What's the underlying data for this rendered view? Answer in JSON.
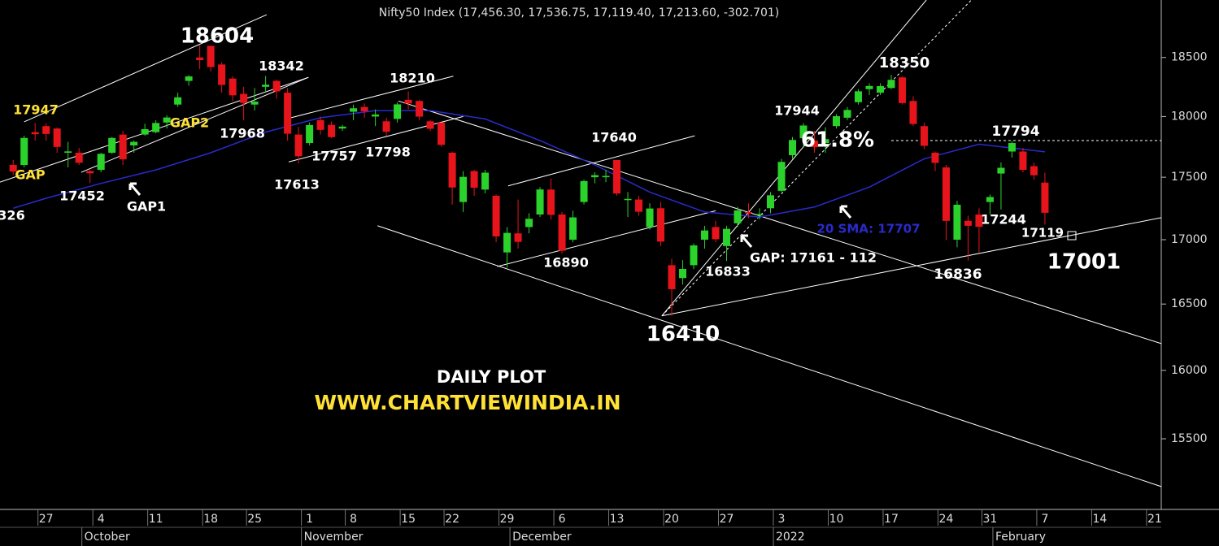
{
  "chart_data": {
    "type": "candlestick",
    "title": "Nifty50 Index (17,456.30, 17,536.75, 17,119.40, 17,213.60, -302.701)",
    "log_scale": true,
    "ylim": [
      15000,
      19000
    ],
    "yticks": [
      15500,
      16000,
      16500,
      17000,
      17500,
      18000,
      18500
    ],
    "xlim": [
      -4.2,
      101.6
    ],
    "xticks": [
      {
        "value": 0,
        "label": "27"
      },
      {
        "value": 5,
        "label": "4"
      },
      {
        "value": 10,
        "label": "11"
      },
      {
        "value": 15,
        "label": "18"
      },
      {
        "value": 19,
        "label": "25"
      },
      {
        "value": 24,
        "label": "1"
      },
      {
        "value": 28,
        "label": "8"
      },
      {
        "value": 33,
        "label": "15"
      },
      {
        "value": 37,
        "label": "22"
      },
      {
        "value": 42,
        "label": "29"
      },
      {
        "value": 47,
        "label": "6"
      },
      {
        "value": 52,
        "label": "13"
      },
      {
        "value": 57,
        "label": "20"
      },
      {
        "value": 62,
        "label": "27"
      },
      {
        "value": 67,
        "label": "3"
      },
      {
        "value": 72,
        "label": "10"
      },
      {
        "value": 77,
        "label": "17"
      },
      {
        "value": 82,
        "label": "24"
      },
      {
        "value": 86,
        "label": "31"
      },
      {
        "value": 91,
        "label": "7"
      },
      {
        "value": 96,
        "label": "14"
      },
      {
        "value": 101,
        "label": "21"
      }
    ],
    "month_ticks": [
      {
        "value": 4,
        "label": "October"
      },
      {
        "value": 24,
        "label": "November"
      },
      {
        "value": 43,
        "label": "December"
      },
      {
        "value": 67,
        "label": "2022"
      },
      {
        "value": 87,
        "label": "February"
      }
    ],
    "series": [
      {
        "up_color": "#2bd22b",
        "down_color": "#e8141b",
        "x": [
          -3,
          -2,
          -1,
          0,
          1,
          2,
          3,
          4,
          5,
          6,
          7,
          8,
          9,
          10,
          11,
          12,
          13,
          14,
          15,
          16,
          17,
          18,
          19,
          20,
          21,
          22,
          23,
          24,
          25,
          26,
          27,
          28,
          29,
          30,
          31,
          32,
          33,
          34,
          35,
          36,
          37,
          38,
          39,
          40,
          41,
          42,
          43,
          44,
          45,
          46,
          47,
          48,
          49,
          50,
          51,
          52,
          53,
          54,
          55,
          56,
          57,
          58,
          59,
          60,
          61,
          62,
          63,
          64,
          65,
          66,
          67,
          68,
          69,
          70,
          71,
          72,
          73,
          74,
          75,
          76,
          77,
          78,
          79,
          80,
          81,
          82,
          83,
          84,
          85,
          86,
          87,
          88,
          89,
          90,
          91
        ],
        "ohlc": [
          [
            17600,
            17640,
            17520,
            17546
          ],
          [
            17600,
            17840,
            17580,
            17822
          ],
          [
            17870,
            17947,
            17800,
            17853
          ],
          [
            17920,
            17943,
            17800,
            17855
          ],
          [
            17900,
            17910,
            17700,
            17748
          ],
          [
            17700,
            17790,
            17580,
            17711
          ],
          [
            17700,
            17740,
            17600,
            17618
          ],
          [
            17550,
            17560,
            17452,
            17532
          ],
          [
            17560,
            17700,
            17540,
            17691
          ],
          [
            17700,
            17830,
            17690,
            17822
          ],
          [
            17850,
            17880,
            17600,
            17646
          ],
          [
            17760,
            17800,
            17700,
            17790
          ],
          [
            17850,
            17940,
            17840,
            17895
          ],
          [
            17870,
            17970,
            17860,
            17946
          ],
          [
            17950,
            18010,
            17900,
            17992
          ],
          [
            18100,
            18200,
            18080,
            18161
          ],
          [
            18300,
            18350,
            18260,
            18338
          ],
          [
            18500,
            18604,
            18400,
            18477
          ],
          [
            18600,
            18600,
            18380,
            18418
          ],
          [
            18440,
            18460,
            18200,
            18266
          ],
          [
            18320,
            18340,
            18130,
            18178
          ],
          [
            18190,
            18250,
            17968,
            18114
          ],
          [
            18100,
            18240,
            18050,
            18125
          ],
          [
            18250,
            18342,
            18200,
            18268
          ],
          [
            18300,
            18310,
            18150,
            18211
          ],
          [
            18200,
            18240,
            17800,
            17857
          ],
          [
            17850,
            17915,
            17613,
            17671
          ],
          [
            17780,
            17950,
            17760,
            17929
          ],
          [
            17970,
            18000,
            17850,
            17889
          ],
          [
            17930,
            17960,
            17820,
            17829
          ],
          [
            17900,
            17930,
            17880,
            17916
          ],
          [
            18040,
            18100,
            17970,
            18069
          ],
          [
            18080,
            18110,
            17990,
            18044
          ],
          [
            18000,
            18060,
            17920,
            18017
          ],
          [
            17960,
            17990,
            17840,
            17873
          ],
          [
            17980,
            18120,
            17950,
            18102
          ],
          [
            18140,
            18210,
            18060,
            18109
          ],
          [
            18130,
            18140,
            17970,
            17999
          ],
          [
            17960,
            17970,
            17880,
            17898
          ],
          [
            17950,
            17950,
            17750,
            17765
          ],
          [
            17700,
            17710,
            17280,
            17417
          ],
          [
            17300,
            17550,
            17220,
            17503
          ],
          [
            17550,
            17560,
            17350,
            17415
          ],
          [
            17400,
            17560,
            17370,
            17537
          ],
          [
            17350,
            17360,
            16980,
            17026
          ],
          [
            16900,
            17100,
            16780,
            17054
          ],
          [
            17050,
            17320,
            16930,
            16983
          ],
          [
            17100,
            17210,
            17050,
            17166
          ],
          [
            17200,
            17420,
            17180,
            17401
          ],
          [
            17400,
            17490,
            17160,
            17197
          ],
          [
            17200,
            17220,
            16890,
            16913
          ],
          [
            17000,
            17230,
            16980,
            17177
          ],
          [
            17300,
            17480,
            17280,
            17469
          ],
          [
            17500,
            17540,
            17450,
            17517
          ],
          [
            17500,
            17560,
            17460,
            17511
          ],
          [
            17640,
            17640,
            17350,
            17368
          ],
          [
            17320,
            17380,
            17180,
            17325
          ],
          [
            17320,
            17350,
            17190,
            17222
          ],
          [
            17100,
            17290,
            17080,
            17248
          ],
          [
            17250,
            17300,
            16950,
            16985
          ],
          [
            16800,
            16850,
            16410,
            16614
          ],
          [
            16700,
            16840,
            16650,
            16771
          ],
          [
            16800,
            16970,
            16770,
            16955
          ],
          [
            17000,
            17110,
            16930,
            17073
          ],
          [
            17100,
            17150,
            16980,
            17004
          ],
          [
            16950,
            17110,
            16833,
            17086
          ],
          [
            17130,
            17260,
            17100,
            17233
          ],
          [
            17220,
            17290,
            17170,
            17214
          ],
          [
            17200,
            17250,
            17160,
            17204
          ],
          [
            17250,
            17380,
            17210,
            17354
          ],
          [
            17390,
            17650,
            17380,
            17625
          ],
          [
            17680,
            17830,
            17650,
            17805
          ],
          [
            17820,
            17945,
            17750,
            17925
          ],
          [
            17800,
            17880,
            17700,
            17746
          ],
          [
            17780,
            17910,
            17700,
            17812
          ],
          [
            17920,
            18020,
            17900,
            18003
          ],
          [
            17990,
            18080,
            17970,
            18055
          ],
          [
            18120,
            18230,
            18100,
            18212
          ],
          [
            18230,
            18280,
            18180,
            18257
          ],
          [
            18200,
            18280,
            18180,
            18256
          ],
          [
            18240,
            18350,
            18230,
            18309
          ],
          [
            18330,
            18340,
            18100,
            18113
          ],
          [
            18130,
            18170,
            17920,
            17938
          ],
          [
            17920,
            17950,
            17730,
            17757
          ],
          [
            17700,
            17710,
            17550,
            17617
          ],
          [
            17580,
            17600,
            16997,
            17149
          ],
          [
            17000,
            17310,
            16940,
            17278
          ],
          [
            17150,
            17190,
            16836,
            17110
          ],
          [
            17200,
            17250,
            16900,
            17102
          ],
          [
            17300,
            17360,
            17200,
            17340
          ],
          [
            17530,
            17620,
            17240,
            17577
          ],
          [
            17710,
            17794,
            17660,
            17780
          ],
          [
            17710,
            17740,
            17540,
            17560
          ],
          [
            17590,
            17620,
            17480,
            17516
          ],
          [
            17456.3,
            17536.75,
            17119.4,
            17213.6
          ]
        ]
      }
    ],
    "sma": {
      "color": "#2a2acc",
      "x": [
        -3,
        0,
        5,
        10,
        15,
        20,
        25,
        30,
        35,
        40,
        45,
        50,
        55,
        60,
        65,
        70,
        75,
        80,
        85,
        91
      ],
      "values": [
        17250,
        17330,
        17450,
        17560,
        17700,
        17870,
        17990,
        18050,
        18050,
        17980,
        17800,
        17600,
        17380,
        17220,
        17180,
        17260,
        17420,
        17650,
        17770,
        17707
      ]
    },
    "trendlines": [
      {
        "color": "#ffffff",
        "dashed": false,
        "points": [
          [
            -2,
            17956
          ],
          [
            20.1,
            18871
          ]
        ]
      },
      {
        "color": "#ffffff",
        "dashed": false,
        "points": [
          [
            -4.2,
            17460
          ],
          [
            23.9,
            18330
          ]
        ]
      },
      {
        "color": "#ffffff",
        "dashed": false,
        "points": [
          [
            3.2,
            17540
          ],
          [
            23.9,
            18330
          ]
        ]
      },
      {
        "color": "#ffffff",
        "dashed": false,
        "points": [
          [
            22.1,
            17985
          ],
          [
            37.1,
            18340
          ]
        ]
      },
      {
        "color": "#ffffff",
        "dashed": false,
        "points": [
          [
            22.1,
            17625
          ],
          [
            38,
            18000
          ]
        ]
      },
      {
        "color": "#ffffff",
        "dashed": false,
        "points": [
          [
            32.1,
            18130
          ],
          [
            101.6,
            16200
          ]
        ]
      },
      {
        "color": "#ffffff",
        "dashed": false,
        "points": [
          [
            30.2,
            17110
          ],
          [
            101.6,
            15160
          ]
        ]
      },
      {
        "color": "#ffffff",
        "dashed": false,
        "points": [
          [
            42.1,
            17430
          ],
          [
            59.1,
            17840
          ]
        ]
      },
      {
        "color": "#ffffff",
        "dashed": false,
        "points": [
          [
            41.1,
            16790
          ],
          [
            61,
            17230
          ]
        ]
      },
      {
        "color": "#ffffff",
        "dashed": false,
        "points": [
          [
            56.1,
            16410
          ],
          [
            101.6,
            17175
          ]
        ]
      },
      {
        "color": "#ffffff",
        "dashed": false,
        "points": [
          [
            56.1,
            16410
          ],
          [
            80.2,
            19000
          ]
        ]
      },
      {
        "color": "#ffffff",
        "dashed": true,
        "points": [
          [
            56.1,
            16410
          ],
          [
            84.3,
            19000
          ]
        ]
      },
      {
        "color": "#ffffff",
        "dashed": true,
        "points": [
          [
            77,
            17800
          ],
          [
            101.6,
            17800
          ]
        ]
      }
    ],
    "annotations": [
      {
        "text": "18604",
        "color": "#ffffff"
      },
      {
        "text": "18342",
        "color": "#ffffff"
      },
      {
        "text": "17947",
        "color": "#ffe135"
      },
      {
        "text": "GAP",
        "color": "#ffe135"
      },
      {
        "text": "326",
        "color": "#ffffff"
      },
      {
        "text": "17452",
        "color": "#ffffff"
      },
      {
        "text": "GAP1",
        "color": "#ffffff"
      },
      {
        "text": "GAP2",
        "color": "#ffe135"
      },
      {
        "text": "17968",
        "color": "#ffffff"
      },
      {
        "text": "17613",
        "color": "#ffffff"
      },
      {
        "text": "17757",
        "color": "#ffffff"
      },
      {
        "text": "17798",
        "color": "#ffffff"
      },
      {
        "text": "18210",
        "color": "#ffffff"
      },
      {
        "text": "17640",
        "color": "#ffffff"
      },
      {
        "text": "16890",
        "color": "#ffffff"
      },
      {
        "text": "16410",
        "color": "#ffffff"
      },
      {
        "text": "16833",
        "color": "#ffffff"
      },
      {
        "text": "GAP: 17161 - 112",
        "color": "#ffffff"
      },
      {
        "text": "17944",
        "color": "#ffffff"
      },
      {
        "text": "61.8%",
        "color": "#ffffff"
      },
      {
        "text": "18350",
        "color": "#ffffff"
      },
      {
        "text": "20 SMA: 17707",
        "color": "#2a2acc"
      },
      {
        "text": "17794",
        "color": "#ffffff"
      },
      {
        "text": "17244",
        "color": "#ffffff"
      },
      {
        "text": "17119",
        "color": "#ffffff"
      },
      {
        "text": "16836",
        "color": "#ffffff"
      },
      {
        "text": "17001",
        "color": "#ffffff"
      },
      {
        "text": "DAILY PLOT",
        "color": "#ffffff"
      },
      {
        "text": "WWW.CHARTVIEWINDIA.IN",
        "color": "#ffe135"
      }
    ]
  }
}
